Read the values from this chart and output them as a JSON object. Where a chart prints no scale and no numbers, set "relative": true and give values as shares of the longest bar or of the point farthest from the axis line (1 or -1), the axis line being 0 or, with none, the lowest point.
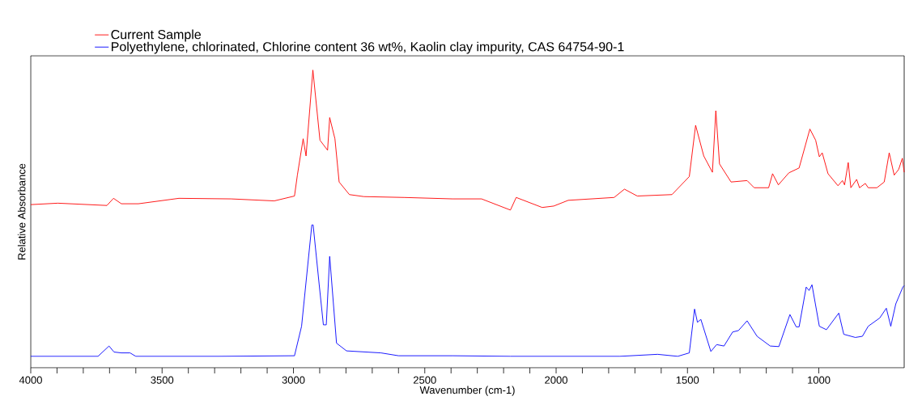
{
  "chart_data": {
    "type": "line",
    "relative": true,
    "xlabel": "Wavenumber (cm-1)",
    "ylabel": "Relative Absorbance",
    "legend": "top",
    "xlim": [
      4000,
      675
    ],
    "xticks": [
      4000,
      3500,
      3000,
      2500,
      2000,
      1500,
      1000
    ],
    "series": [
      {
        "name": "Current Sample",
        "color": "#ff0000",
        "x": [
          4000,
          3897,
          3710,
          3685,
          3655,
          3590,
          3436,
          3238,
          3073,
          2996,
          2985,
          2963,
          2952,
          2926,
          2899,
          2870,
          2862,
          2842,
          2826,
          2787,
          2732,
          2579,
          2394,
          2284,
          2174,
          2152,
          2053,
          2009,
          1954,
          1779,
          1740,
          1691,
          1559,
          1493,
          1469,
          1438,
          1405,
          1392,
          1378,
          1334,
          1273,
          1246,
          1191,
          1176,
          1154,
          1114,
          1075,
          1034,
          1012,
          998,
          987,
          965,
          927,
          910,
          902,
          888,
          878,
          856,
          845,
          823,
          812,
          779,
          751,
          732,
          713,
          696,
          682,
          675
        ],
        "values": [
          0.53,
          0.535,
          0.527,
          0.552,
          0.533,
          0.533,
          0.552,
          0.55,
          0.543,
          0.56,
          0.633,
          0.76,
          0.7,
          1.0,
          0.755,
          0.72,
          0.834,
          0.76,
          0.609,
          0.565,
          0.558,
          0.555,
          0.55,
          0.55,
          0.511,
          0.555,
          0.52,
          0.525,
          0.545,
          0.555,
          0.584,
          0.56,
          0.565,
          0.628,
          0.807,
          0.7,
          0.643,
          0.858,
          0.672,
          0.609,
          0.614,
          0.589,
          0.589,
          0.638,
          0.599,
          0.641,
          0.658,
          0.794,
          0.755,
          0.697,
          0.711,
          0.638,
          0.596,
          0.614,
          0.599,
          0.677,
          0.589,
          0.618,
          0.589,
          0.604,
          0.589,
          0.589,
          0.609,
          0.711,
          0.633,
          0.653,
          0.692,
          0.643
        ]
      },
      {
        "name": "Polyethylene, chlorinated, Chlorine content 36 wt%, Kaolin clay impurity, CAS 64754-90-1",
        "color": "#0000ff",
        "x": [
          4000,
          3744,
          3702,
          3683,
          3655,
          3622,
          3600,
          3282,
          2996,
          2969,
          2930,
          2925,
          2902,
          2886,
          2875,
          2862,
          2836,
          2798,
          2667,
          2600,
          2394,
          2174,
          1932,
          1757,
          1614,
          1537,
          1493,
          1473,
          1462,
          1449,
          1411,
          1389,
          1361,
          1328,
          1306,
          1273,
          1235,
          1185,
          1152,
          1110,
          1086,
          1075,
          1048,
          1037,
          1026,
          998,
          971,
          924,
          905,
          861,
          834,
          812,
          768,
          743,
          726,
          707,
          680,
          675
        ],
        "values": [
          0,
          0,
          0.036,
          0.015,
          0.012,
          0.012,
          0,
          0,
          0.002,
          0.105,
          0.459,
          0.459,
          0.251,
          0.11,
          0.11,
          0.349,
          0.046,
          0.019,
          0.012,
          0.002,
          0.002,
          0,
          0,
          0,
          0.007,
          0,
          0.012,
          0.165,
          0.119,
          0.129,
          0.017,
          0.041,
          0.036,
          0.085,
          0.09,
          0.124,
          0.07,
          0.036,
          0.034,
          0.146,
          0.103,
          0.103,
          0.242,
          0.23,
          0.25,
          0.105,
          0.093,
          0.151,
          0.077,
          0.066,
          0.07,
          0.105,
          0.134,
          0.168,
          0.105,
          0.183,
          0.242,
          0.247
        ]
      }
    ]
  }
}
